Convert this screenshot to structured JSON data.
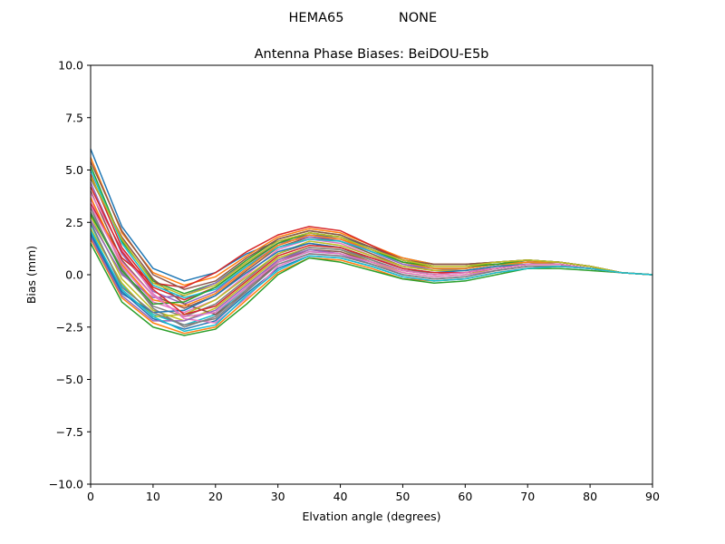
{
  "chart_data": {
    "type": "line",
    "suptitle": {
      "left": "HEMA65",
      "right": "NONE"
    },
    "title": "Antenna Phase Biases: BeiDOU-E5b",
    "xlabel": "Elvation angle (degrees)",
    "ylabel": "Bias (mm)",
    "xlim": [
      0,
      90
    ],
    "ylim": [
      -10,
      10
    ],
    "xticks": [
      0,
      10,
      20,
      30,
      40,
      50,
      60,
      70,
      80,
      90
    ],
    "xtick_labels": [
      "0",
      "10",
      "20",
      "30",
      "40",
      "50",
      "60",
      "70",
      "80",
      "90"
    ],
    "yticks": [
      -10,
      -7.5,
      -5,
      -2.5,
      0,
      2.5,
      5,
      7.5,
      10
    ],
    "ytick_labels": [
      "−10.0",
      "−7.5",
      "−5.0",
      "−2.5",
      "0.0",
      "2.5",
      "5.0",
      "7.5",
      "10.0"
    ],
    "grid": false,
    "legend": "none",
    "colors": [
      "#1f77b4",
      "#ff7f0e",
      "#2ca02c",
      "#d62728",
      "#9467bd",
      "#8c564b",
      "#e377c2",
      "#7f7f7f",
      "#bcbd22",
      "#17becf"
    ],
    "x": [
      0,
      5,
      10,
      15,
      20,
      25,
      30,
      35,
      40,
      45,
      50,
      55,
      60,
      65,
      70,
      75,
      80,
      85,
      90
    ],
    "series": [
      {
        "values": [
          6.0,
          2.3,
          0.3,
          -0.3,
          0.1,
          1.0,
          1.6,
          1.9,
          1.8,
          1.3,
          0.8,
          0.5,
          0.5,
          0.6,
          0.7,
          0.6,
          0.4,
          0.1,
          0.0
        ]
      },
      {
        "values": [
          5.6,
          2.0,
          0.1,
          -0.5,
          -0.1,
          0.9,
          1.8,
          2.2,
          2.0,
          1.4,
          0.8,
          0.5,
          0.5,
          0.6,
          0.7,
          0.6,
          0.4,
          0.1,
          0.0
        ]
      },
      {
        "values": [
          5.2,
          1.6,
          -0.3,
          -0.9,
          -0.4,
          0.7,
          1.7,
          2.1,
          1.9,
          1.3,
          0.7,
          0.4,
          0.4,
          0.6,
          0.7,
          0.6,
          0.4,
          0.1,
          0.0
        ]
      },
      {
        "values": [
          4.8,
          1.3,
          -0.6,
          -1.2,
          -0.6,
          0.5,
          1.5,
          2.0,
          1.8,
          1.2,
          0.6,
          0.3,
          0.3,
          0.5,
          0.6,
          0.6,
          0.4,
          0.1,
          0.0
        ]
      },
      {
        "values": [
          4.4,
          1.0,
          -0.8,
          -1.4,
          -0.8,
          0.4,
          1.4,
          1.9,
          1.7,
          1.1,
          0.5,
          0.2,
          0.3,
          0.5,
          0.6,
          0.6,
          0.4,
          0.1,
          0.0
        ]
      },
      {
        "values": [
          4.0,
          0.7,
          -1.0,
          -1.6,
          -1.0,
          0.2,
          1.3,
          1.8,
          1.6,
          1.0,
          0.4,
          0.2,
          0.2,
          0.4,
          0.6,
          0.5,
          0.3,
          0.1,
          0.0
        ]
      },
      {
        "values": [
          3.6,
          0.4,
          -1.3,
          -1.8,
          -1.2,
          0.0,
          1.2,
          1.7,
          1.5,
          0.9,
          0.3,
          0.1,
          0.1,
          0.4,
          0.5,
          0.5,
          0.3,
          0.1,
          0.0
        ]
      },
      {
        "values": [
          3.2,
          0.1,
          -1.5,
          -2.0,
          -1.4,
          -0.2,
          1.0,
          1.5,
          1.3,
          0.7,
          0.2,
          0.0,
          0.1,
          0.3,
          0.5,
          0.5,
          0.3,
          0.1,
          0.0
        ]
      },
      {
        "values": [
          2.8,
          -0.2,
          -1.7,
          -2.2,
          -1.6,
          -0.4,
          0.8,
          1.3,
          1.2,
          0.6,
          0.1,
          -0.1,
          0.0,
          0.3,
          0.5,
          0.5,
          0.3,
          0.1,
          0.0
        ]
      },
      {
        "values": [
          2.4,
          -0.5,
          -1.9,
          -2.4,
          -1.9,
          -0.6,
          0.6,
          1.1,
          1.0,
          0.5,
          0.0,
          -0.2,
          -0.1,
          0.2,
          0.4,
          0.4,
          0.3,
          0.1,
          0.0
        ]
      },
      {
        "values": [
          2.0,
          -0.8,
          -2.1,
          -2.6,
          -2.2,
          -0.9,
          0.3,
          0.9,
          0.8,
          0.4,
          -0.1,
          -0.3,
          -0.2,
          0.1,
          0.3,
          0.4,
          0.3,
          0.1,
          0.0
        ]
      },
      {
        "values": [
          1.7,
          -1.1,
          -2.3,
          -2.8,
          -2.5,
          -1.2,
          0.1,
          0.8,
          0.7,
          0.3,
          -0.2,
          -0.3,
          -0.2,
          0.1,
          0.3,
          0.4,
          0.3,
          0.1,
          0.0
        ]
      },
      {
        "values": [
          1.5,
          -1.3,
          -2.5,
          -2.9,
          -2.6,
          -1.4,
          0.0,
          0.8,
          0.6,
          0.2,
          -0.2,
          -0.4,
          -0.3,
          0.0,
          0.3,
          0.3,
          0.2,
          0.1,
          0.0
        ]
      },
      {
        "values": [
          3.4,
          0.8,
          -0.4,
          -0.6,
          0.1,
          1.1,
          1.9,
          2.3,
          2.1,
          1.4,
          0.7,
          0.4,
          0.4,
          0.5,
          0.6,
          0.6,
          0.4,
          0.1,
          0.0
        ]
      },
      {
        "values": [
          2.6,
          0.0,
          -1.1,
          -1.0,
          -0.4,
          0.6,
          1.5,
          1.8,
          1.7,
          1.1,
          0.5,
          0.3,
          0.3,
          0.5,
          0.6,
          0.5,
          0.3,
          0.1,
          0.0
        ]
      },
      {
        "values": [
          4.6,
          1.8,
          -0.2,
          -1.4,
          -1.9,
          -0.8,
          0.6,
          1.2,
          1.1,
          0.6,
          0.2,
          0.0,
          0.1,
          0.3,
          0.5,
          0.5,
          0.3,
          0.1,
          0.0
        ]
      },
      {
        "values": [
          3.9,
          1.2,
          -0.9,
          -2.1,
          -2.3,
          -1.1,
          0.4,
          1.0,
          0.9,
          0.5,
          0.1,
          -0.1,
          0.0,
          0.2,
          0.4,
          0.4,
          0.3,
          0.1,
          0.0
        ]
      },
      {
        "values": [
          3.0,
          0.3,
          -1.6,
          -2.5,
          -2.0,
          -0.7,
          0.7,
          1.3,
          1.2,
          0.7,
          0.2,
          0.1,
          0.1,
          0.3,
          0.5,
          0.5,
          0.3,
          0.1,
          0.0
        ]
      },
      {
        "values": [
          2.2,
          -0.4,
          -2.0,
          -1.9,
          -1.2,
          -0.1,
          1.0,
          1.6,
          1.4,
          0.9,
          0.4,
          0.2,
          0.2,
          0.4,
          0.6,
          0.5,
          0.3,
          0.1,
          0.0
        ]
      },
      {
        "values": [
          5.0,
          1.5,
          -0.5,
          -1.1,
          -0.7,
          0.4,
          1.3,
          1.7,
          1.6,
          1.1,
          0.6,
          0.3,
          0.3,
          0.5,
          0.6,
          0.6,
          0.4,
          0.1,
          0.0
        ]
      },
      {
        "values": [
          1.9,
          -0.9,
          -1.8,
          -1.7,
          -1.0,
          0.1,
          1.1,
          1.5,
          1.3,
          0.8,
          0.3,
          0.1,
          0.2,
          0.4,
          0.5,
          0.5,
          0.3,
          0.1,
          0.0
        ]
      },
      {
        "values": [
          3.7,
          0.5,
          -1.2,
          -1.5,
          -0.9,
          0.3,
          1.4,
          1.9,
          1.7,
          1.2,
          0.6,
          0.3,
          0.3,
          0.5,
          0.6,
          0.6,
          0.4,
          0.1,
          0.0
        ]
      },
      {
        "values": [
          2.9,
          0.2,
          -1.4,
          -1.3,
          -0.6,
          0.5,
          1.5,
          2.0,
          1.8,
          1.2,
          0.6,
          0.4,
          0.4,
          0.5,
          0.7,
          0.6,
          0.4,
          0.1,
          0.0
        ]
      },
      {
        "values": [
          4.2,
          1.1,
          -0.7,
          -1.9,
          -1.5,
          -0.3,
          0.9,
          1.4,
          1.3,
          0.8,
          0.3,
          0.1,
          0.1,
          0.3,
          0.5,
          0.5,
          0.3,
          0.1,
          0.0
        ]
      },
      {
        "values": [
          1.8,
          -1.0,
          -2.2,
          -2.2,
          -1.7,
          -0.5,
          0.7,
          1.2,
          1.0,
          0.5,
          0.0,
          -0.2,
          -0.1,
          0.2,
          0.4,
          0.4,
          0.3,
          0.1,
          0.0
        ]
      },
      {
        "values": [
          5.4,
          2.1,
          0.0,
          -0.7,
          -0.3,
          0.8,
          1.7,
          2.1,
          1.9,
          1.3,
          0.7,
          0.5,
          0.5,
          0.6,
          0.7,
          0.6,
          0.4,
          0.1,
          0.0
        ]
      },
      {
        "values": [
          3.3,
          0.6,
          -1.0,
          -2.0,
          -1.8,
          -0.6,
          0.6,
          1.1,
          1.0,
          0.6,
          0.2,
          0.0,
          0.1,
          0.3,
          0.5,
          0.5,
          0.3,
          0.1,
          0.0
        ]
      },
      {
        "values": [
          2.5,
          -0.6,
          -1.8,
          -2.4,
          -2.1,
          -0.8,
          0.5,
          1.0,
          0.9,
          0.5,
          0.0,
          -0.2,
          -0.1,
          0.2,
          0.4,
          0.4,
          0.3,
          0.1,
          0.0
        ]
      },
      {
        "values": [
          4.7,
          1.7,
          -0.4,
          -1.0,
          -0.5,
          0.6,
          1.6,
          2.0,
          1.8,
          1.2,
          0.7,
          0.4,
          0.4,
          0.6,
          0.7,
          0.6,
          0.4,
          0.1,
          0.0
        ]
      },
      {
        "values": [
          2.1,
          -0.7,
          -2.0,
          -2.7,
          -2.4,
          -1.0,
          0.2,
          0.9,
          0.8,
          0.4,
          -0.1,
          -0.3,
          -0.2,
          0.1,
          0.3,
          0.4,
          0.3,
          0.1,
          0.0
        ]
      }
    ]
  }
}
